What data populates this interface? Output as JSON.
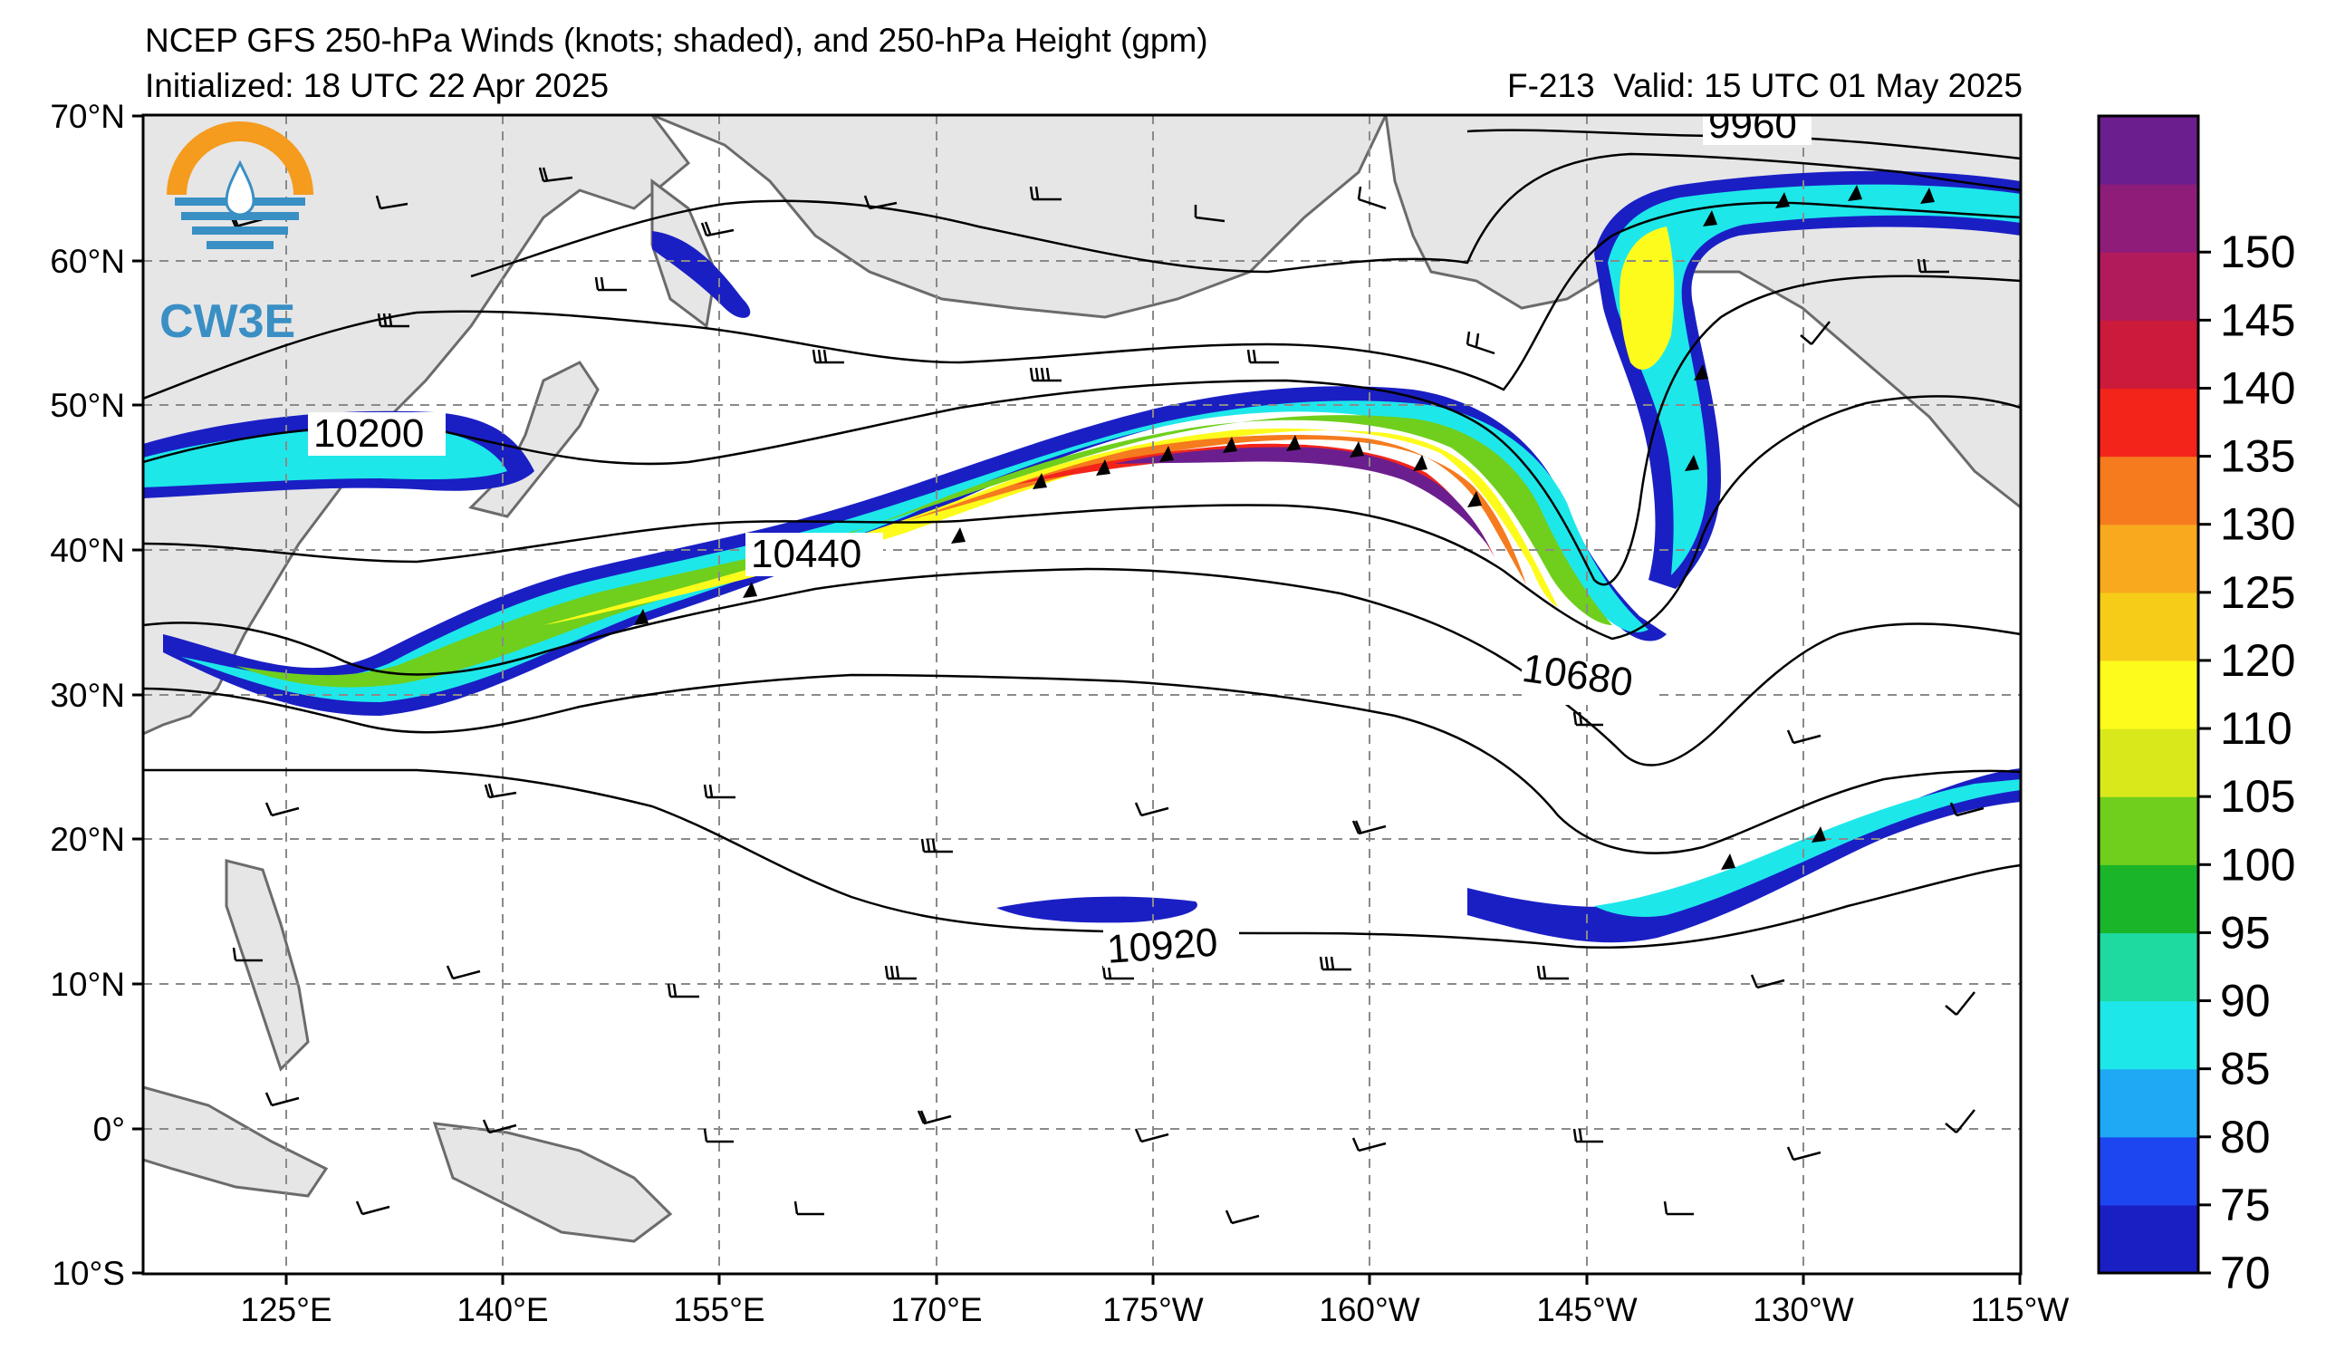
{
  "header": {
    "title": "NCEP GFS 250-hPa Winds (knots; shaded), and 250-hPa Height (gpm)",
    "initialized": "Initialized: 18 UTC 22 Apr 2025",
    "forecast_hour": "F-213",
    "valid": "Valid: 15 UTC 01 May 2025"
  },
  "logo": {
    "text": "CW3E"
  },
  "axes": {
    "y_labels": [
      "70°N",
      "60°N",
      "50°N",
      "40°N",
      "30°N",
      "20°N",
      "10°N",
      "0°",
      "10°S"
    ],
    "x_labels": [
      "125°E",
      "140°E",
      "155°E",
      "170°E",
      "175°W",
      "160°W",
      "145°W",
      "130°W",
      "115°W"
    ]
  },
  "height_contours": {
    "labels": [
      "9960",
      "10200",
      "10440",
      "10680",
      "10920"
    ]
  },
  "colorbar": {
    "labels": [
      "70",
      "75",
      "80",
      "85",
      "90",
      "95",
      "100",
      "105",
      "110",
      "120",
      "125",
      "130",
      "135",
      "140",
      "145",
      "150"
    ],
    "colors": [
      "#1a1fc4",
      "#1e46f0",
      "#1fa9f5",
      "#1ee7ea",
      "#1ed9a0",
      "#1bb52a",
      "#6fcf1c",
      "#d9e81a",
      "#fdfb1c",
      "#f6cc19",
      "#f8a91e",
      "#f57b1e",
      "#f3241a",
      "#cc1a3a",
      "#b11b5b",
      "#8e1c79",
      "#6b1f8e"
    ]
  },
  "colors": {
    "land": "#e6e6e6",
    "coast": "#6b6b6b",
    "grid": "#8a8a8a"
  }
}
